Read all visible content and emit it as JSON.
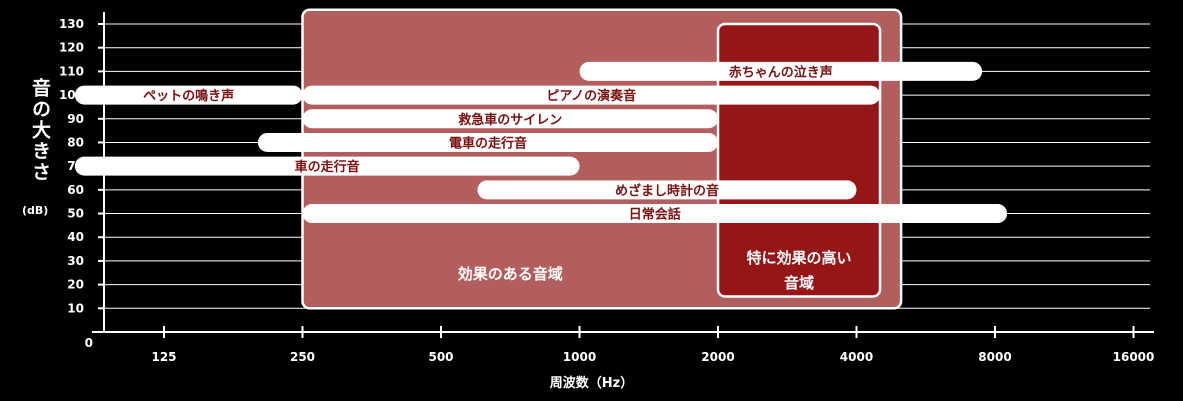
{
  "chart_data": {
    "type": "range-bar",
    "ylabel": "音の大きさ",
    "ylabel_unit": "(dB)",
    "xlabel": "周波数（Hz）",
    "x_scale": "log2",
    "xlim": [
      75,
      16000
    ],
    "ylim": [
      0,
      130
    ],
    "y_ticks": [
      0,
      10,
      20,
      30,
      40,
      50,
      60,
      70,
      80,
      90,
      100,
      110,
      120,
      130
    ],
    "x_ticks": [
      125,
      250,
      500,
      1000,
      2000,
      4000,
      8000,
      16000
    ],
    "grid": true,
    "regions": [
      {
        "name": "効果のある音域",
        "x": [
          250,
          5000
        ],
        "y": [
          10,
          136
        ],
        "color": "#b25e5e"
      },
      {
        "name": "特に効果の高い\n音域",
        "x": [
          2000,
          4500
        ],
        "y": [
          15,
          130
        ],
        "color": "#951616"
      }
    ],
    "series": [
      {
        "name": "赤ちゃんの泣き声",
        "x": [
          1000,
          7500
        ],
        "y": 110
      },
      {
        "name": "ペットの鳴き声",
        "x": [
          80,
          250
        ],
        "y": 100
      },
      {
        "name": "ピアノの演奏音",
        "x": [
          250,
          4500
        ],
        "y": 100
      },
      {
        "name": "救急車のサイレン",
        "x": [
          250,
          2000
        ],
        "y": 90
      },
      {
        "name": "電車の走行音",
        "x": [
          200,
          2000
        ],
        "y": 80
      },
      {
        "name": "車の走行音",
        "x": [
          80,
          1000
        ],
        "y": 70
      },
      {
        "name": "めざまし時計の音",
        "x": [
          600,
          4000
        ],
        "y": 60
      },
      {
        "name": "日常会話",
        "x": [
          250,
          8500
        ],
        "y": 50
      }
    ],
    "colors": {
      "background": "#000000",
      "bar": "#ffffff",
      "bar_text": "#7a1010",
      "axis": "#ffffff"
    }
  }
}
